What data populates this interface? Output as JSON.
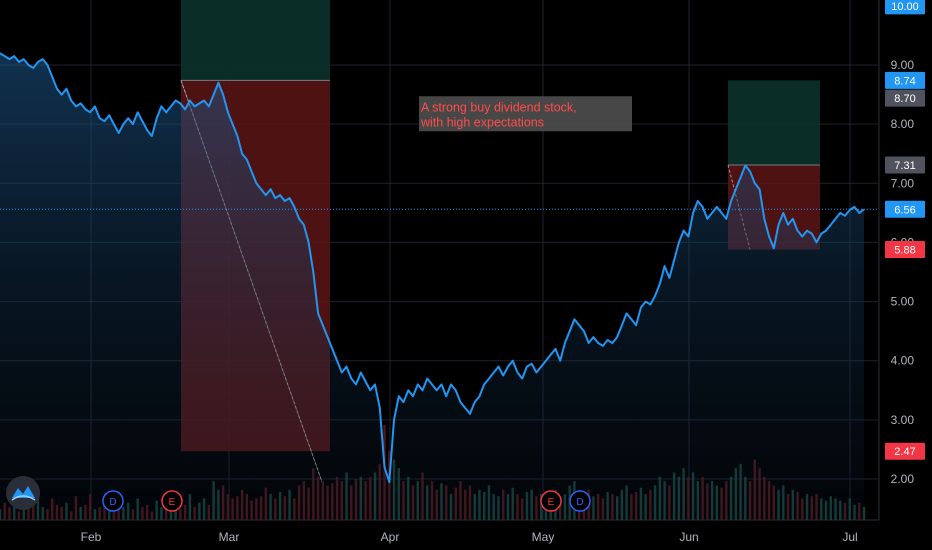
{
  "chart_data": {
    "type": "line",
    "title": "",
    "x_labels": [
      "Feb",
      "Mar",
      "Apr",
      "May",
      "Jun",
      "Jul"
    ],
    "y_ticks": [
      "2.00",
      "3.00",
      "4.00",
      "5.00",
      "6.00",
      "7.00",
      "8.00",
      "9.00"
    ],
    "ylim": [
      1.3,
      10.25
    ],
    "top_partial_label": "10.00",
    "last_price": "6.56",
    "series": [
      {
        "values": [
          9.2,
          9.15,
          9.1,
          9.15,
          9.05,
          9.1,
          9.0,
          8.95,
          9.05,
          9.1,
          9.0,
          8.8,
          8.6,
          8.5,
          8.6,
          8.4,
          8.3,
          8.35,
          8.25,
          8.2,
          8.3,
          8.1,
          8.05,
          8.15,
          8.0,
          7.85,
          8.0,
          8.1,
          8.0,
          8.2,
          8.05,
          7.9,
          7.8,
          8.1,
          8.3,
          8.2,
          8.3,
          8.4,
          8.35,
          8.25,
          8.4,
          8.3,
          8.35,
          8.4,
          8.3,
          8.5,
          8.7,
          8.5,
          8.2,
          8.0,
          7.8,
          7.5,
          7.4,
          7.2,
          7.0,
          6.9,
          6.8,
          6.9,
          6.75,
          6.8,
          6.7,
          6.75,
          6.6,
          6.4,
          6.3,
          6.0,
          5.5,
          4.8,
          4.6,
          4.4,
          4.2,
          4.0,
          3.8,
          3.9,
          3.7,
          3.6,
          3.8,
          3.65,
          3.5,
          3.6,
          3.2,
          2.2,
          1.95,
          3.0,
          3.4,
          3.3,
          3.5,
          3.4,
          3.6,
          3.5,
          3.7,
          3.6,
          3.5,
          3.6,
          3.4,
          3.6,
          3.5,
          3.3,
          3.2,
          3.1,
          3.3,
          3.4,
          3.6,
          3.7,
          3.8,
          3.9,
          3.75,
          3.9,
          4.0,
          3.8,
          3.7,
          3.9,
          3.95,
          3.8,
          3.9,
          4.0,
          4.1,
          4.2,
          4.0,
          4.3,
          4.5,
          4.7,
          4.6,
          4.5,
          4.3,
          4.4,
          4.3,
          4.25,
          4.35,
          4.3,
          4.4,
          4.6,
          4.8,
          4.7,
          4.6,
          4.9,
          5.0,
          4.95,
          5.1,
          5.3,
          5.6,
          5.4,
          5.7,
          6.0,
          6.2,
          6.1,
          6.5,
          6.7,
          6.6,
          6.4,
          6.5,
          6.6,
          6.5,
          6.4,
          6.7,
          6.9,
          7.1,
          7.3,
          7.2,
          7.0,
          6.9,
          6.4,
          6.1,
          5.9,
          6.3,
          6.5,
          6.3,
          6.4,
          6.2,
          6.1,
          6.2,
          6.15,
          6.0,
          6.15,
          6.2,
          6.3,
          6.4,
          6.5,
          6.45,
          6.55,
          6.6,
          6.5,
          6.56
        ]
      }
    ],
    "volume": [
      0.25,
      0.4,
      0.3,
      0.55,
      0.2,
      0.35,
      0.3,
      0.45,
      0.6,
      0.3,
      0.25,
      0.5,
      0.35,
      0.3,
      0.4,
      0.2,
      0.55,
      0.3,
      0.35,
      0.6,
      0.25,
      0.3,
      0.45,
      0.5,
      0.2,
      0.35,
      0.3,
      0.4,
      0.25,
      0.5,
      0.3,
      0.35,
      0.2,
      0.45,
      0.3,
      0.55,
      0.4,
      0.3,
      0.25,
      0.35,
      0.6,
      0.3,
      0.4,
      0.5,
      0.35,
      0.9,
      0.7,
      0.8,
      0.6,
      0.5,
      0.55,
      0.7,
      0.6,
      0.45,
      0.5,
      0.55,
      0.75,
      0.6,
      0.5,
      0.65,
      0.55,
      0.7,
      0.5,
      0.8,
      0.9,
      0.75,
      1.2,
      1.0,
      0.9,
      0.8,
      0.85,
      1.0,
      0.9,
      1.1,
      0.8,
      0.95,
      1.0,
      0.9,
      1.0,
      1.1,
      1.3,
      2.2,
      1.6,
      1.4,
      1.2,
      0.9,
      1.0,
      0.8,
      0.9,
      1.1,
      0.8,
      0.9,
      0.7,
      0.85,
      0.8,
      0.6,
      0.75,
      0.9,
      0.7,
      0.8,
      0.6,
      0.7,
      0.65,
      0.8,
      0.6,
      0.55,
      0.7,
      0.6,
      0.75,
      0.6,
      0.5,
      0.65,
      0.7,
      0.55,
      0.6,
      0.5,
      0.65,
      0.7,
      0.55,
      0.6,
      0.8,
      0.9,
      0.7,
      0.6,
      0.7,
      0.55,
      0.6,
      0.5,
      0.65,
      0.6,
      0.55,
      0.7,
      0.8,
      0.6,
      0.65,
      0.75,
      0.6,
      0.7,
      0.8,
      1.0,
      0.9,
      0.8,
      1.1,
      1.0,
      1.2,
      1.0,
      1.1,
      0.9,
      1.0,
      0.85,
      0.9,
      0.8,
      0.75,
      0.9,
      1.0,
      1.2,
      1.3,
      1.0,
      0.9,
      1.4,
      1.2,
      1.0,
      0.9,
      0.8,
      0.7,
      0.8,
      0.6,
      0.7,
      0.65,
      0.5,
      0.6,
      0.55,
      0.6,
      0.5,
      0.45,
      0.55,
      0.5,
      0.45,
      0.4,
      0.5,
      0.35,
      0.4,
      0.3
    ],
    "positions": [
      {
        "entry": 8.74,
        "stop": 10.25,
        "target": 2.47,
        "entry_label": "8.74",
        "target_label": "2.47"
      },
      {
        "entry": 7.31,
        "stop": 8.74,
        "target": 5.88,
        "entry_label": "7.31",
        "target_label": "5.88"
      }
    ],
    "extra_price_label": "8.70",
    "annotation": {
      "lines": [
        "A strong buy dividend stock,",
        "with high expectations"
      ],
      "price": 8.15
    },
    "event_markers": [
      {
        "letter": "D",
        "color": "#2962ff"
      },
      {
        "letter": "E",
        "color": "#f23645"
      },
      {
        "letter": "E",
        "color": "#f23645"
      },
      {
        "letter": "D",
        "color": "#2962ff"
      }
    ],
    "colors": {
      "line": "#2196f3",
      "profit_fill": "#0b2f29",
      "loss_fill": "#5c1515",
      "loss_tag": "#f23645",
      "gray_tag": "#50535e",
      "last_price_tag": "#2196f3"
    }
  }
}
